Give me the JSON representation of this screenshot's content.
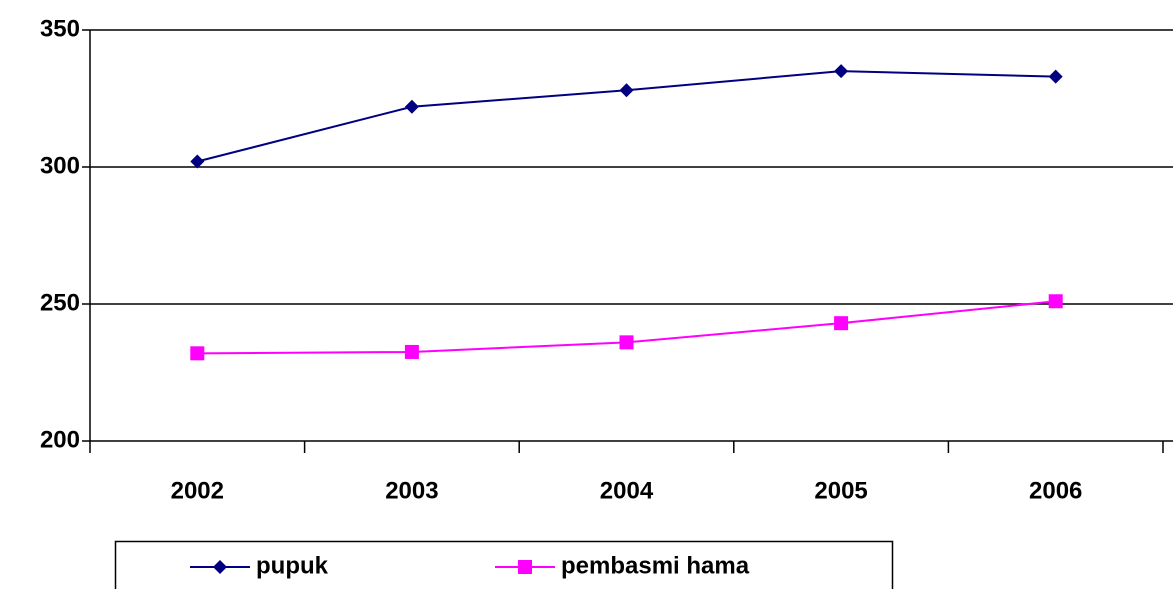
{
  "chart_data": {
    "type": "line",
    "categories": [
      "2002",
      "2003",
      "2004",
      "2005",
      "2006"
    ],
    "series": [
      {
        "name": "pupuk",
        "color": "#000080",
        "marker": "diamond",
        "values": [
          302,
          322,
          328,
          335,
          333
        ]
      },
      {
        "name": "pembasmi hama",
        "color": "#ff00ff",
        "marker": "square",
        "values": [
          232,
          232.5,
          236,
          243,
          251
        ]
      }
    ],
    "ylim": [
      200,
      350
    ],
    "yticks": [
      200,
      250,
      300,
      350
    ],
    "grid": true,
    "legend": "bottom"
  }
}
